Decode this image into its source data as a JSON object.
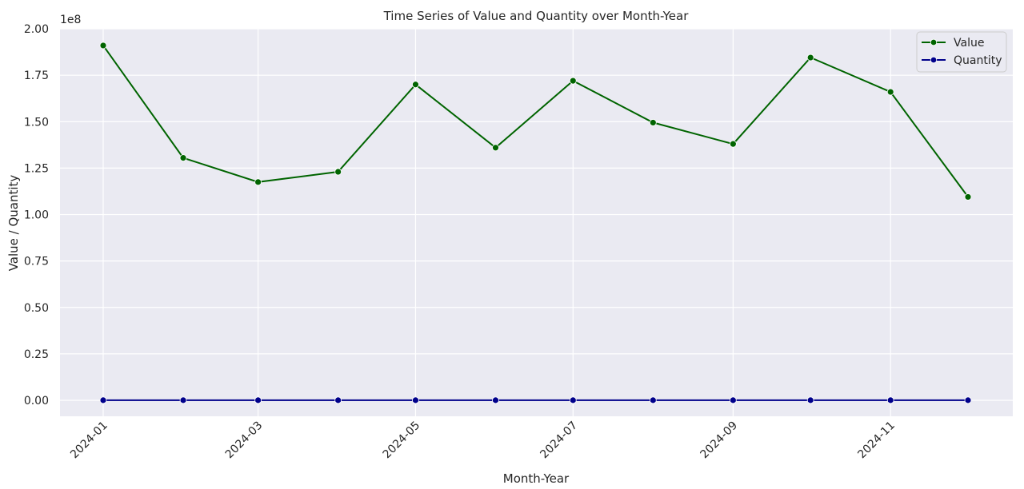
{
  "chart_data": {
    "type": "line",
    "title": "Time Series of Value and Quantity over Month-Year",
    "xlabel": "Month-Year",
    "ylabel": "Value / Quantity",
    "y_offset_label": "1e8",
    "x": [
      "2024-01-01",
      "2024-02-01",
      "2024-03-01",
      "2024-04-01",
      "2024-05-01",
      "2024-06-01",
      "2024-07-01",
      "2024-08-01",
      "2024-09-01",
      "2024-10-01",
      "2024-11-01",
      "2024-12-01"
    ],
    "x_ticks": [
      "2024-01",
      "2024-03",
      "2024-05",
      "2024-07",
      "2024-09",
      "2024-11"
    ],
    "y_ticks": [
      "0.00",
      "0.25",
      "0.50",
      "0.75",
      "1.00",
      "1.25",
      "1.50",
      "1.75",
      "2.00"
    ],
    "ylim": [
      -9000000,
      200000000
    ],
    "grid": true,
    "legend_position": "top-right",
    "series": [
      {
        "name": "Value",
        "color": "#006400",
        "values": [
          191000000,
          130500000,
          117500000,
          123000000,
          170000000,
          136000000,
          172000000,
          149500000,
          138000000,
          184500000,
          166000000,
          109500000
        ]
      },
      {
        "name": "Quantity",
        "color": "#00008b",
        "values": [
          50000,
          50000,
          50000,
          50000,
          50000,
          50000,
          50000,
          50000,
          50000,
          50000,
          50000,
          50000
        ]
      }
    ]
  }
}
